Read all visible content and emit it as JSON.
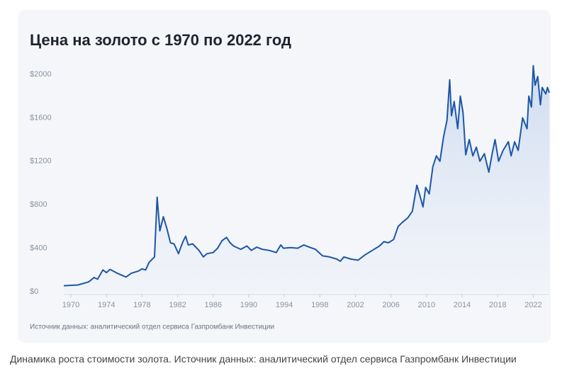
{
  "chart_data": {
    "type": "area",
    "title": "Цена на золото с 1970 по 2022 год",
    "source_note": "Источник данных: аналитический отдел сервиса Газпромбанк Инвестиции",
    "x": [
      1969.2,
      1970.8,
      1972.0,
      1972.6,
      1973.0,
      1973.6,
      1974.0,
      1974.4,
      1975.2,
      1976.2,
      1976.8,
      1977.6,
      1978.0,
      1978.4,
      1978.8,
      1979.4,
      1979.7,
      1980.0,
      1980.4,
      1980.8,
      1981.2,
      1981.6,
      1982.1,
      1982.6,
      1982.9,
      1983.2,
      1983.7,
      1984.4,
      1984.9,
      1985.3,
      1986.0,
      1986.5,
      1987.0,
      1987.5,
      1987.9,
      1988.3,
      1989.1,
      1989.8,
      1990.3,
      1990.9,
      1991.5,
      1992.3,
      1993.1,
      1993.6,
      1993.9,
      1994.7,
      1995.5,
      1996.2,
      1996.8,
      1997.5,
      1998.3,
      1999.1,
      1999.9,
      2000.3,
      2000.7,
      2001.5,
      2002.3,
      2003.1,
      2003.9,
      2004.7,
      2005.2,
      2005.7,
      2006.3,
      2006.8,
      2007.3,
      2007.9,
      2008.4,
      2008.9,
      2009.2,
      2009.6,
      2009.9,
      2010.3,
      2010.7,
      2011.1,
      2011.5,
      2011.9,
      2012.3,
      2012.6,
      2012.8,
      2013.1,
      2013.5,
      2013.8,
      2014.1,
      2014.4,
      2014.8,
      2015.2,
      2015.6,
      2016.0,
      2016.5,
      2017.0,
      2017.4,
      2017.7,
      2018.1,
      2018.6,
      2019.2,
      2019.5,
      2019.9,
      2020.3,
      2020.8,
      2021.3,
      2021.5,
      2021.8,
      2022.0,
      2022.2,
      2022.5,
      2022.8,
      2023.0,
      2023.4,
      2023.6,
      2023.8
    ],
    "series": [
      {
        "color": "#1d56a8",
        "values": [
          55,
          62,
          90,
          130,
          115,
          200,
          175,
          205,
          170,
          135,
          170,
          190,
          210,
          200,
          270,
          320,
          870,
          560,
          690,
          580,
          450,
          440,
          350,
          460,
          510,
          430,
          440,
          380,
          320,
          350,
          360,
          400,
          470,
          500,
          450,
          420,
          390,
          420,
          380,
          410,
          390,
          380,
          360,
          430,
          400,
          405,
          400,
          430,
          410,
          390,
          330,
          320,
          300,
          280,
          320,
          300,
          290,
          340,
          380,
          420,
          460,
          450,
          480,
          600,
          640,
          680,
          740,
          980,
          900,
          780,
          960,
          900,
          1150,
          1250,
          1200,
          1420,
          1580,
          1950,
          1620,
          1750,
          1500,
          1800,
          1650,
          1260,
          1400,
          1250,
          1330,
          1200,
          1270,
          1100,
          1280,
          1400,
          1200,
          1300,
          1380,
          1250,
          1380,
          1300,
          1600,
          1500,
          1800,
          1700,
          2080,
          1900,
          1980,
          1720,
          1880,
          1820,
          1880,
          1830
        ]
      }
    ],
    "xlim": [
      1969.2,
      2023.8
    ],
    "xticks": [
      1970,
      1974,
      1978,
      1982,
      1986,
      1990,
      1994,
      1998,
      2002,
      2006,
      2010,
      2014,
      2018,
      2022
    ],
    "ylim": [
      0,
      2100
    ],
    "yticks": [
      {
        "value": 0,
        "label": "$0"
      },
      {
        "value": 400,
        "label": "$400"
      },
      {
        "value": 800,
        "label": "$800"
      },
      {
        "value": 1200,
        "label": "$1200"
      },
      {
        "value": 1600,
        "label": "$1600"
      },
      {
        "value": 2000,
        "label": "$2000"
      }
    ]
  },
  "caption": "Динамика роста стоимости золота. Источник данных: аналитический отдел сервиса Газпромбанк Инвестиции"
}
